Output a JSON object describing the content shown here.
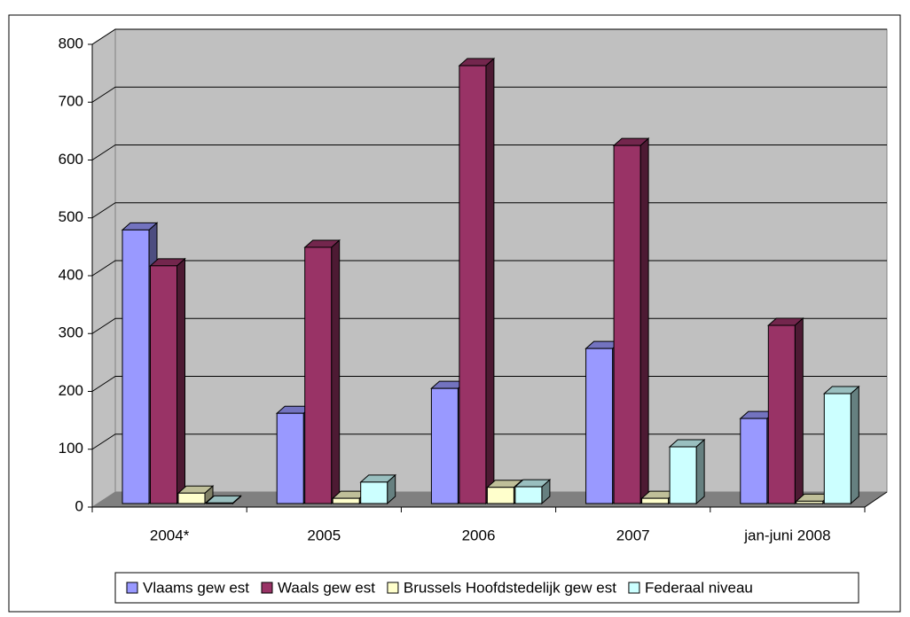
{
  "chart_data": {
    "type": "bar3d",
    "categories": [
      "2004*",
      "2005",
      "2006",
      "2007",
      "jan-juni 2008"
    ],
    "series": [
      {
        "name": "Vlaams gew est",
        "color": "#9999ff",
        "values": [
          473,
          156,
          199,
          268,
          147
        ]
      },
      {
        "name": "Waals gew est",
        "color": "#993366",
        "values": [
          411,
          443,
          757,
          619,
          308
        ]
      },
      {
        "name": "Brussels Hoofdstedelijk gew est",
        "color": "#ffffcc",
        "values": [
          18,
          9,
          28,
          9,
          4
        ]
      },
      {
        "name": "Federaal niveau",
        "color": "#ccffff",
        "values": [
          1,
          37,
          29,
          98,
          190
        ]
      }
    ],
    "ylim": [
      0,
      800
    ],
    "yticks": [
      0,
      100,
      200,
      300,
      400,
      500,
      600,
      700,
      800
    ],
    "grid": true,
    "legend": "bottom"
  }
}
